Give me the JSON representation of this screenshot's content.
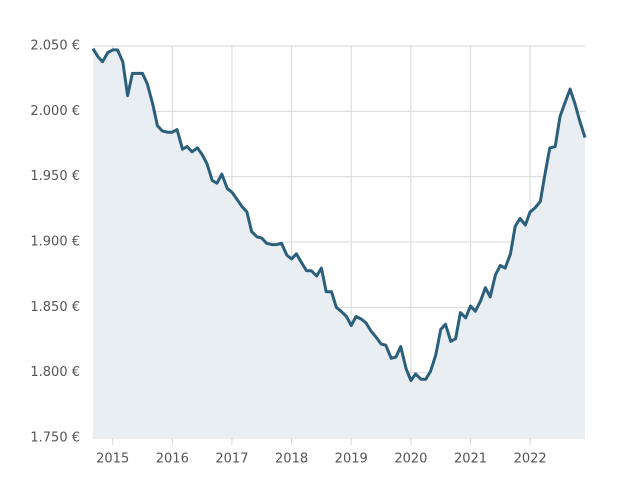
{
  "chart_data": {
    "type": "area",
    "x": [
      2014.67,
      2014.75,
      2014.83,
      2014.92,
      2015.0,
      2015.08,
      2015.17,
      2015.25,
      2015.33,
      2015.42,
      2015.5,
      2015.58,
      2015.67,
      2015.75,
      2015.83,
      2015.92,
      2016.0,
      2016.08,
      2016.17,
      2016.25,
      2016.33,
      2016.42,
      2016.5,
      2016.58,
      2016.67,
      2016.75,
      2016.83,
      2016.92,
      2017.0,
      2017.08,
      2017.17,
      2017.25,
      2017.33,
      2017.42,
      2017.5,
      2017.58,
      2017.67,
      2017.75,
      2017.83,
      2017.92,
      2018.0,
      2018.08,
      2018.17,
      2018.25,
      2018.33,
      2018.42,
      2018.5,
      2018.58,
      2018.67,
      2018.75,
      2018.83,
      2018.92,
      2019.0,
      2019.08,
      2019.17,
      2019.25,
      2019.33,
      2019.42,
      2019.5,
      2019.58,
      2019.67,
      2019.75,
      2019.83,
      2019.92,
      2020.0,
      2020.08,
      2020.17,
      2020.25,
      2020.33,
      2020.42,
      2020.5,
      2020.58,
      2020.67,
      2020.75,
      2020.83,
      2020.92,
      2021.0,
      2021.08,
      2021.17,
      2021.25,
      2021.33,
      2021.42,
      2021.5,
      2021.58,
      2021.67,
      2021.75,
      2021.83,
      2021.92,
      2022.0,
      2022.08,
      2022.17,
      2022.25,
      2022.33,
      2022.42,
      2022.5,
      2022.58,
      2022.67,
      2022.75,
      2022.83,
      2022.92
    ],
    "values": [
      2048,
      2042,
      2038,
      2045,
      2047,
      2047,
      2038,
      2012,
      2029,
      2029,
      2029,
      2021,
      2006,
      1989,
      1985,
      1984,
      1984,
      1986,
      1971,
      1973,
      1969,
      1972,
      1967,
      1960,
      1947,
      1945,
      1952,
      1941,
      1938,
      1933,
      1927,
      1923,
      1908,
      1904,
      1903,
      1899,
      1898,
      1898,
      1899,
      1890,
      1887,
      1891,
      1884,
      1878,
      1878,
      1874,
      1880,
      1862,
      1862,
      1850,
      1847,
      1843,
      1836,
      1843,
      1841,
      1838,
      1832,
      1827,
      1822,
      1821,
      1811,
      1812,
      1820,
      1803,
      1794,
      1799,
      1795,
      1795,
      1801,
      1814,
      1833,
      1837,
      1824,
      1826,
      1846,
      1842,
      1851,
      1847,
      1855,
      1865,
      1858,
      1875,
      1882,
      1880,
      1891,
      1912,
      1918,
      1913,
      1923,
      1926,
      1931,
      1952,
      1972,
      1973,
      1996,
      2006,
      2017,
      2006,
      1993,
      1980
    ],
    "color": "#2b5f7c",
    "fill": "#e9eef3",
    "xlim": [
      2014.67,
      2022.92
    ],
    "xticks": [
      2015,
      2016,
      2017,
      2018,
      2019,
      2020,
      2021,
      2022
    ],
    "ylim": [
      1750,
      2050
    ],
    "yticks": [
      {
        "value": 1750,
        "label": "1.750 €"
      },
      {
        "value": 1800,
        "label": "1.800 €"
      },
      {
        "value": 1850,
        "label": "1.850 €"
      },
      {
        "value": 1900,
        "label": "1.900 €"
      },
      {
        "value": 1950,
        "label": "1.950 €"
      },
      {
        "value": 2000,
        "label": "2.000 €"
      },
      {
        "value": 2050,
        "label": "2.050 €"
      }
    ],
    "grid": true
  }
}
